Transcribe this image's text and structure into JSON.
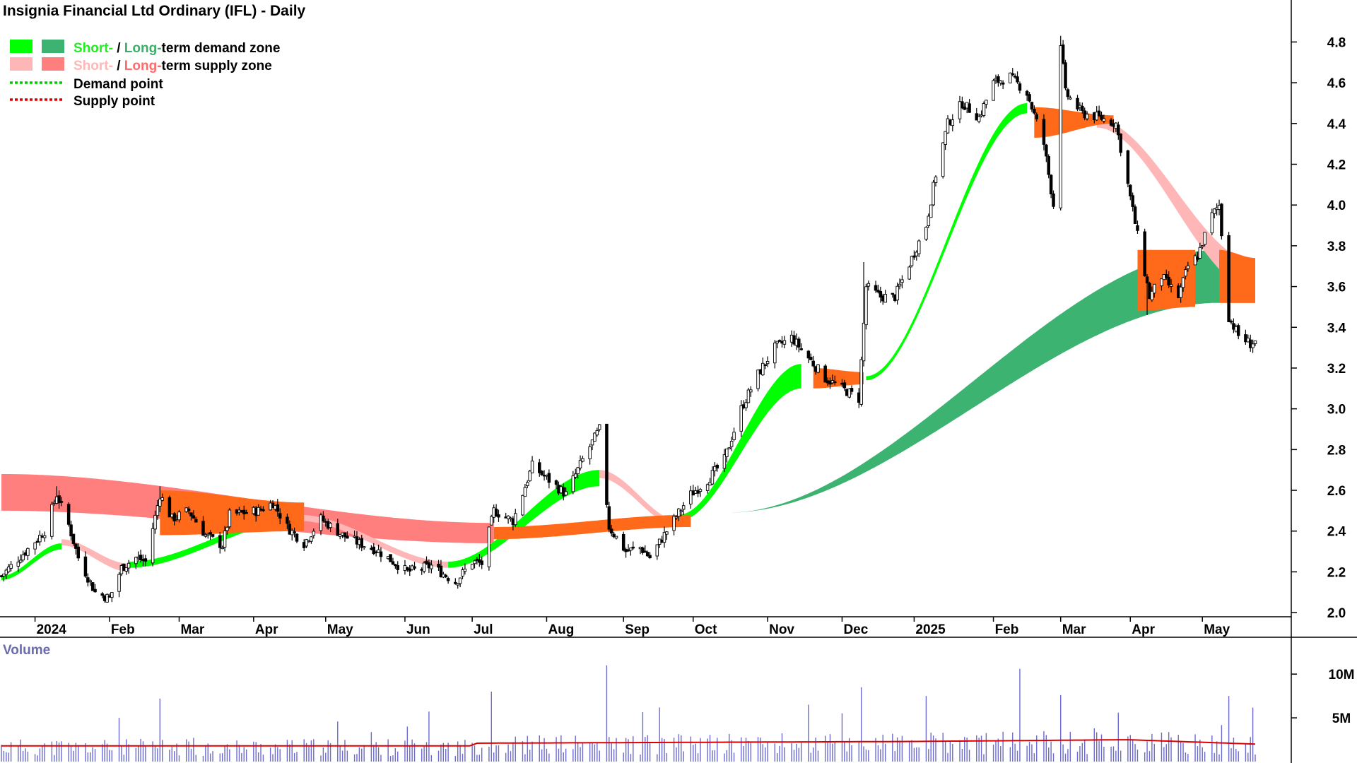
{
  "chart_data": {
    "type": "candlestick",
    "title": "Insignia Financial Ltd Ordinary (IFL) - Daily",
    "legend": [
      {
        "key": "demand_zone",
        "parts": [
          {
            "text": "Short-",
            "color": "#22ee22"
          },
          {
            "text": " / ",
            "color": "#000000"
          },
          {
            "text": "Long-",
            "color": "#3dae6a"
          },
          {
            "text": "term demand zone",
            "color": "#000000"
          }
        ],
        "swatches": [
          "#00ff00",
          "#3cb371"
        ]
      },
      {
        "key": "supply_zone",
        "parts": [
          {
            "text": "Short-",
            "color": "#ffb6b6"
          },
          {
            "text": " / ",
            "color": "#000000"
          },
          {
            "text": "Long-",
            "color": "#ff6b6b"
          },
          {
            "text": "term supply zone",
            "color": "#000000"
          }
        ],
        "swatches": [
          "#ffb6b6",
          "#ff7f7f"
        ]
      },
      {
        "key": "demand_point",
        "parts": [
          {
            "text": "Demand point",
            "color": "#000000"
          }
        ],
        "line_color": "#00cc00"
      },
      {
        "key": "supply_point",
        "parts": [
          {
            "text": "Supply point",
            "color": "#000000"
          }
        ],
        "line_color": "#dd0000"
      }
    ],
    "colors": {
      "short_demand": "#00ff00",
      "long_demand": "#3cb371",
      "short_supply": "#ffb6b6",
      "long_supply": "#ff7f7f",
      "overlap": "#ff6a1a",
      "volume_bar": "#6a6acf",
      "volume_avg": "#dd0000"
    },
    "x_axis": {
      "start": "2023-12-18",
      "end": "2025-05-23",
      "labels": [
        {
          "date": "2024-01-01",
          "text": "2024"
        },
        {
          "date": "2024-02-01",
          "text": "Feb"
        },
        {
          "date": "2024-03-01",
          "text": "Mar"
        },
        {
          "date": "2024-04-01",
          "text": "Apr"
        },
        {
          "date": "2024-05-01",
          "text": "May"
        },
        {
          "date": "2024-06-03",
          "text": "Jun"
        },
        {
          "date": "2024-07-01",
          "text": "Jul"
        },
        {
          "date": "2024-08-01",
          "text": "Aug"
        },
        {
          "date": "2024-09-02",
          "text": "Sep"
        },
        {
          "date": "2024-10-01",
          "text": "Oct"
        },
        {
          "date": "2024-11-01",
          "text": "Nov"
        },
        {
          "date": "2024-12-02",
          "text": "Dec"
        },
        {
          "date": "2025-01-01",
          "text": "2025"
        },
        {
          "date": "2025-02-03",
          "text": "Feb"
        },
        {
          "date": "2025-03-03",
          "text": "Mar"
        },
        {
          "date": "2025-04-01",
          "text": "Apr"
        },
        {
          "date": "2025-05-01",
          "text": "May"
        }
      ]
    },
    "y_axis": {
      "ylim": [
        1.99,
        4.85
      ],
      "ticks": [
        "2.0",
        "2.2",
        "2.4",
        "2.6",
        "2.8",
        "3.0",
        "3.2",
        "3.4",
        "3.6",
        "3.8",
        "4.0",
        "4.2",
        "4.4",
        "4.6",
        "4.8"
      ]
    },
    "volume_axis": {
      "title": "Volume",
      "ylim": [
        0,
        13000000
      ],
      "ticks": [
        {
          "value": 5000000,
          "text": "5M"
        },
        {
          "value": 10000000,
          "text": "10M"
        }
      ]
    },
    "price_path": [
      [
        "2023-12-18",
        2.18
      ],
      [
        "2023-12-28",
        2.3
      ],
      [
        "2024-01-05",
        2.4
      ],
      [
        "2024-01-10",
        2.58
      ],
      [
        "2024-01-15",
        2.43
      ],
      [
        "2024-01-19",
        2.27
      ],
      [
        "2024-01-26",
        2.1
      ],
      [
        "2024-02-01",
        2.07
      ],
      [
        "2024-02-06",
        2.22
      ],
      [
        "2024-02-12",
        2.27
      ],
      [
        "2024-02-16",
        2.25
      ],
      [
        "2024-02-22",
        2.58
      ],
      [
        "2024-02-27",
        2.46
      ],
      [
        "2024-03-05",
        2.5
      ],
      [
        "2024-03-12",
        2.38
      ],
      [
        "2024-03-19",
        2.33
      ],
      [
        "2024-03-22",
        2.48
      ],
      [
        "2024-04-03",
        2.5
      ],
      [
        "2024-04-09",
        2.54
      ],
      [
        "2024-04-15",
        2.42
      ],
      [
        "2024-04-22",
        2.34
      ],
      [
        "2024-04-29",
        2.46
      ],
      [
        "2024-05-08",
        2.38
      ],
      [
        "2024-05-15",
        2.34
      ],
      [
        "2024-05-22",
        2.31
      ],
      [
        "2024-06-04",
        2.2
      ],
      [
        "2024-06-14",
        2.23
      ],
      [
        "2024-06-24",
        2.15
      ],
      [
        "2024-07-01",
        2.25
      ],
      [
        "2024-07-05",
        2.24
      ],
      [
        "2024-07-10",
        2.5
      ],
      [
        "2024-07-18",
        2.45
      ],
      [
        "2024-07-26",
        2.72
      ],
      [
        "2024-08-02",
        2.65
      ],
      [
        "2024-08-09",
        2.58
      ],
      [
        "2024-08-16",
        2.75
      ],
      [
        "2024-08-23",
        2.9
      ],
      [
        "2024-08-27",
        2.42
      ],
      [
        "2024-09-03",
        2.3
      ],
      [
        "2024-09-09",
        2.32
      ],
      [
        "2024-09-13",
        2.27
      ],
      [
        "2024-09-20",
        2.4
      ],
      [
        "2024-09-30",
        2.58
      ],
      [
        "2024-10-07",
        2.65
      ],
      [
        "2024-10-14",
        2.75
      ],
      [
        "2024-10-21",
        3.0
      ],
      [
        "2024-10-28",
        3.17
      ],
      [
        "2024-11-04",
        3.3
      ],
      [
        "2024-11-11",
        3.35
      ],
      [
        "2024-11-18",
        3.25
      ],
      [
        "2024-11-25",
        3.15
      ],
      [
        "2024-12-02",
        3.1
      ],
      [
        "2024-12-09",
        3.05
      ],
      [
        "2024-12-12",
        3.6
      ],
      [
        "2024-12-18",
        3.55
      ],
      [
        "2024-12-24",
        3.55
      ],
      [
        "2025-01-06",
        3.9
      ],
      [
        "2025-01-10",
        4.15
      ],
      [
        "2025-01-15",
        4.4
      ],
      [
        "2025-01-21",
        4.5
      ],
      [
        "2025-01-28",
        4.43
      ],
      [
        "2025-02-03",
        4.6
      ],
      [
        "2025-02-10",
        4.63
      ],
      [
        "2025-02-17",
        4.55
      ],
      [
        "2025-02-24",
        4.3
      ],
      [
        "2025-02-28",
        4.0
      ],
      [
        "2025-03-03",
        4.8
      ],
      [
        "2025-03-05",
        4.55
      ],
      [
        "2025-03-12",
        4.45
      ],
      [
        "2025-03-19",
        4.43
      ],
      [
        "2025-03-26",
        4.4
      ],
      [
        "2025-03-31",
        4.1
      ],
      [
        "2025-04-04",
        3.85
      ],
      [
        "2025-04-09",
        3.55
      ],
      [
        "2025-04-14",
        3.65
      ],
      [
        "2025-04-21",
        3.55
      ],
      [
        "2025-04-25",
        3.7
      ],
      [
        "2025-04-29",
        3.75
      ],
      [
        "2025-05-05",
        3.95
      ],
      [
        "2025-05-08",
        4.0
      ],
      [
        "2025-05-12",
        3.45
      ],
      [
        "2025-05-16",
        3.36
      ],
      [
        "2025-05-21",
        3.32
      ],
      [
        "2025-05-23",
        3.33
      ]
    ],
    "spikes": [
      {
        "date": "2024-01-10",
        "high": 2.62
      },
      {
        "date": "2024-02-22",
        "high": 2.62
      },
      {
        "date": "2024-07-10",
        "high": 2.53
      },
      {
        "date": "2024-08-26",
        "high": 2.92
      },
      {
        "date": "2024-12-11",
        "high": 3.72
      },
      {
        "date": "2025-03-03",
        "high": 4.83
      },
      {
        "date": "2025-02-28",
        "low": 3.98
      },
      {
        "date": "2025-04-08",
        "low": 3.46
      },
      {
        "date": "2025-05-21",
        "low": 3.28
      }
    ],
    "zones": {
      "short_demand": [
        {
          "start": "2023-12-18",
          "end": "2024-01-12",
          "lower": [
            2.16,
            2.31
          ],
          "upper": [
            2.18,
            2.34
          ]
        },
        {
          "start": "2024-02-09",
          "end": "2024-04-20",
          "lower": [
            2.22,
            2.45
          ],
          "upper": [
            2.25,
            2.48
          ]
        },
        {
          "start": "2024-06-21",
          "end": "2024-08-23",
          "lower": [
            2.22,
            2.62
          ],
          "upper": [
            2.25,
            2.7
          ]
        },
        {
          "start": "2024-09-25",
          "end": "2024-11-15",
          "lower": [
            2.45,
            3.1
          ],
          "upper": [
            2.48,
            3.22
          ]
        },
        {
          "start": "2024-12-12",
          "end": "2025-02-17",
          "lower": [
            3.14,
            4.45
          ],
          "upper": [
            3.16,
            4.5
          ]
        }
      ],
      "long_demand": [
        {
          "start": "2024-10-15",
          "end": "2025-05-08",
          "lower": [
            2.49,
            3.52
          ],
          "upper": [
            2.49,
            3.78
          ]
        }
      ],
      "short_supply": [
        {
          "start": "2024-01-12",
          "end": "2024-02-09",
          "lower": [
            2.33,
            2.2
          ],
          "upper": [
            2.36,
            2.24
          ]
        },
        {
          "start": "2024-04-20",
          "end": "2024-06-21",
          "lower": [
            2.45,
            2.22
          ],
          "upper": [
            2.48,
            2.25
          ]
        },
        {
          "start": "2024-08-23",
          "end": "2024-09-25",
          "lower": [
            2.66,
            2.42
          ],
          "upper": [
            2.7,
            2.45
          ]
        },
        {
          "start": "2025-03-18",
          "end": "2025-05-23",
          "lower": [
            4.38,
            3.58
          ],
          "upper": [
            4.42,
            3.72
          ]
        }
      ],
      "long_supply": [
        {
          "start": "2023-12-18",
          "end": "2024-07-10",
          "lower": [
            2.5,
            2.34
          ],
          "upper": [
            2.68,
            2.44
          ]
        },
        {
          "start": "2025-05-08",
          "end": "2025-05-23",
          "lower": [
            3.52,
            3.52
          ],
          "upper": [
            3.78,
            3.74
          ]
        }
      ]
    },
    "volume_profile": [
      [
        "2023-12-18",
        1800000
      ],
      [
        "2024-06-30",
        1800000
      ],
      [
        "2024-07-01",
        2100000
      ],
      [
        "2024-12-31",
        2300000
      ],
      [
        "2025-03-31",
        2500000
      ],
      [
        "2025-05-23",
        2000000
      ]
    ],
    "volume_spikes": [
      {
        "date": "2024-02-22",
        "value": 7200000
      },
      {
        "date": "2024-07-09",
        "value": 8000000
      },
      {
        "date": "2024-08-26",
        "value": 11000000
      },
      {
        "date": "2024-12-10",
        "value": 8500000
      },
      {
        "date": "2025-02-14",
        "value": 10600000
      },
      {
        "date": "2025-03-03",
        "value": 7600000
      },
      {
        "date": "2025-05-12",
        "value": 7500000
      },
      {
        "date": "2025-01-06",
        "value": 7500000
      },
      {
        "date": "2024-02-05",
        "value": 5000000
      }
    ]
  }
}
